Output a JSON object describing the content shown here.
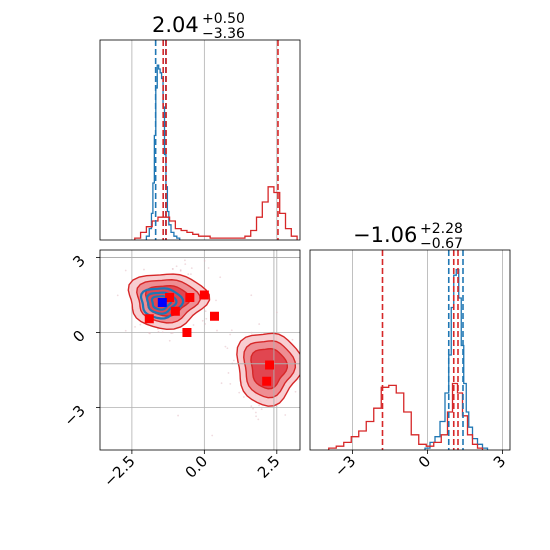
{
  "colors": {
    "blue": "#1f77b4",
    "red": "#d62728",
    "grid": "#b0b0b0",
    "marker_red": "#ff0000",
    "marker_blue": "#0000ff"
  },
  "chart_data": [
    {
      "type": "histogram",
      "panel": "top-left marginal (x)",
      "title_value": "2.04",
      "title_plus": "+0.50",
      "title_minus": "−3.36",
      "xlim": [
        -3.6,
        3.3
      ],
      "grid": true,
      "vlines": {
        "blue": [
          -1.68,
          -1.33
        ],
        "red": [
          -1.42,
          -1.32,
          2.54
        ]
      },
      "series": [
        {
          "color": "blue",
          "x": [
            -1.95,
            -1.85,
            -1.8,
            -1.75,
            -1.7,
            -1.65,
            -1.6,
            -1.55,
            -1.5,
            -1.45,
            -1.4,
            -1.35,
            -1.3,
            -1.25,
            -1.2,
            -1.1,
            -1.0,
            -0.9
          ],
          "y": [
            0.02,
            0.06,
            0.14,
            0.3,
            0.55,
            0.8,
            0.92,
            0.9,
            0.88,
            0.85,
            0.7,
            0.45,
            0.28,
            0.15,
            0.08,
            0.04,
            0.02,
            0.01
          ]
        },
        {
          "color": "red",
          "x": [
            -2.3,
            -2.1,
            -1.9,
            -1.7,
            -1.5,
            -1.3,
            -1.1,
            -0.9,
            -0.7,
            -0.5,
            -0.3,
            -0.1,
            0.1,
            0.3,
            0.5,
            0.7,
            0.9,
            1.1,
            1.3,
            1.5,
            1.7,
            1.9,
            2.1,
            2.3,
            2.5,
            2.7,
            2.9,
            3.1
          ],
          "y": [
            0.01,
            0.04,
            0.07,
            0.1,
            0.12,
            0.12,
            0.1,
            0.06,
            0.05,
            0.04,
            0.03,
            0.02,
            0.02,
            0.01,
            0.01,
            0.01,
            0.01,
            0.01,
            0.01,
            0.02,
            0.05,
            0.12,
            0.2,
            0.28,
            0.25,
            0.14,
            0.06,
            0.02
          ]
        }
      ]
    },
    {
      "type": "scatter",
      "panel": "bottom-left joint (x vs y)",
      "xlim": [
        -3.6,
        3.3
      ],
      "ylim": [
        -4.7,
        3.3
      ],
      "xticks": [
        -2.5,
        0.0,
        2.5
      ],
      "xtick_labels": [
        "−2.5",
        "0.0",
        "2.5"
      ],
      "yticks": [
        3,
        0,
        -3
      ],
      "ytick_labels": [
        "3",
        "0",
        "−3"
      ],
      "grid": true,
      "crosshair": {
        "x": 2.4,
        "y": -1.25,
        "hline_top": 3.0
      },
      "contours": [
        {
          "group": "red cluster",
          "cx": -1.3,
          "cy": 1.3,
          "rx": 1.35,
          "ry": 1.1,
          "levels": [
            1.0,
            0.78,
            0.55
          ]
        },
        {
          "group": "red cluster",
          "cx": 2.2,
          "cy": -1.4,
          "rx": 1.1,
          "ry": 1.45,
          "levels": [
            1.0,
            0.78,
            0.55
          ]
        },
        {
          "group": "blue cluster",
          "cx": -1.5,
          "cy": 1.2,
          "rx": 0.7,
          "ry": 0.6,
          "levels": [
            1.0,
            0.7,
            0.45
          ]
        }
      ],
      "red_markers": {
        "x": [
          -1.9,
          -1.2,
          -0.5,
          0.0,
          -1.0,
          -0.6,
          0.35,
          2.25,
          2.15
        ],
        "y": [
          0.55,
          1.4,
          1.4,
          1.5,
          0.85,
          0.0,
          0.65,
          -1.3,
          -1.95
        ]
      },
      "blue_markers": {
        "x": [
          -1.45
        ],
        "y": [
          1.2
        ]
      }
    },
    {
      "type": "histogram",
      "panel": "bottom-right marginal (y)",
      "title_value": "−1.06",
      "title_plus": "+2.28",
      "title_minus": "−0.67",
      "xlim": [
        -4.7,
        3.3
      ],
      "xticks": [
        -3,
        0,
        3
      ],
      "xtick_labels": [
        "−3",
        "0",
        "3"
      ],
      "grid": true,
      "vlines": {
        "blue": [
          0.85,
          1.42
        ],
        "red": [
          -1.8,
          1.05,
          1.22
        ]
      },
      "series": [
        {
          "color": "blue",
          "x": [
            0.0,
            0.2,
            0.4,
            0.6,
            0.8,
            0.9,
            1.0,
            1.1,
            1.2,
            1.3,
            1.4,
            1.5,
            1.6,
            1.7,
            1.9,
            2.1,
            2.3
          ],
          "y": [
            0.01,
            0.04,
            0.07,
            0.15,
            0.3,
            0.5,
            0.75,
            0.92,
            0.95,
            0.8,
            0.55,
            0.35,
            0.2,
            0.12,
            0.06,
            0.03,
            0.01
          ]
        },
        {
          "color": "red",
          "x": [
            -3.8,
            -3.5,
            -3.2,
            -2.9,
            -2.6,
            -2.3,
            -2.0,
            -1.7,
            -1.4,
            -1.1,
            -0.8,
            -0.5,
            -0.2,
            0.1,
            0.4,
            0.7,
            0.9,
            1.1,
            1.3,
            1.5,
            1.7,
            1.9,
            2.1
          ],
          "y": [
            0.01,
            0.02,
            0.04,
            0.07,
            0.1,
            0.15,
            0.22,
            0.33,
            0.34,
            0.3,
            0.2,
            0.08,
            0.03,
            0.02,
            0.04,
            0.08,
            0.2,
            0.35,
            0.3,
            0.18,
            0.08,
            0.03,
            0.01
          ]
        }
      ]
    }
  ]
}
